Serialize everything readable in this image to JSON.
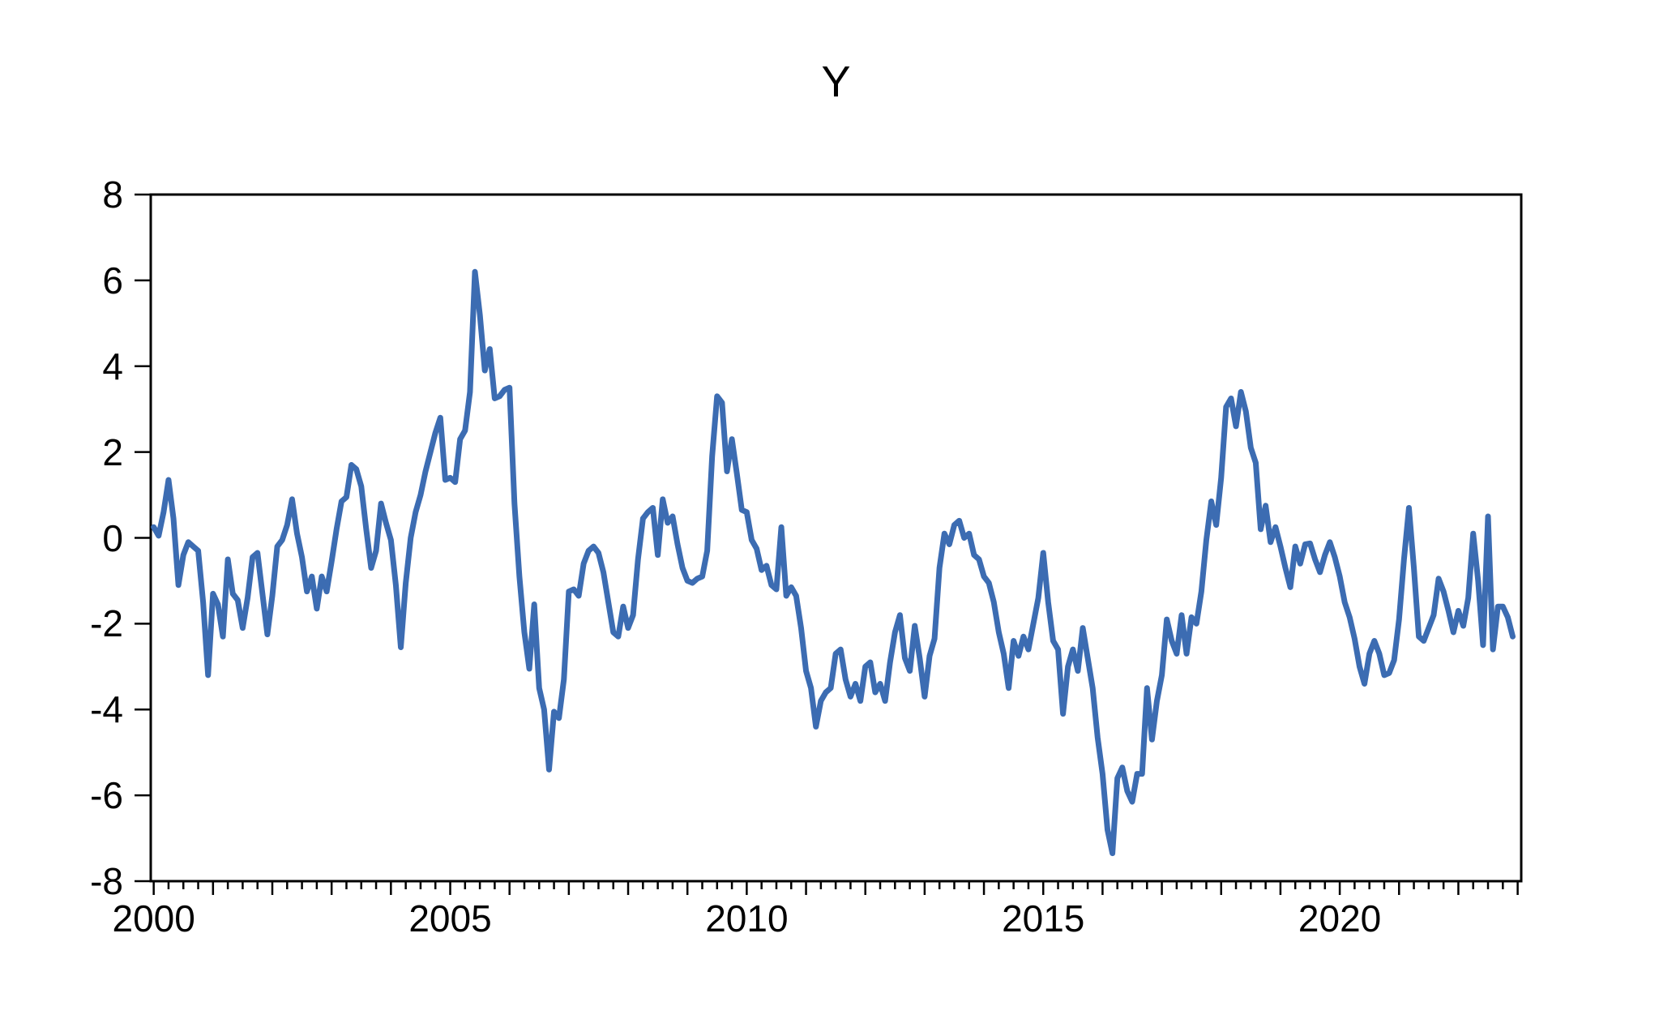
{
  "page": {
    "background": "#ffffff"
  },
  "chart_data": {
    "type": "line",
    "title": "Y",
    "xlabel": "",
    "ylabel": "",
    "grid": false,
    "legend": "none",
    "axis_color": "#000000",
    "ylim": [
      -8,
      8
    ],
    "y_tick_step": 2,
    "y_tick_labels": [
      "8",
      "6",
      "4",
      "2",
      "0",
      "-2",
      "-4",
      "-6",
      "-8"
    ],
    "x_axis_years": [
      2000,
      2023
    ],
    "x_minor_tick_interval_years": 0.25,
    "x_tick_labels": [
      {
        "label": "2000",
        "year": 2000
      },
      {
        "label": "2005",
        "year": 2005
      },
      {
        "label": "2010",
        "year": 2010
      },
      {
        "label": "2015",
        "year": 2015
      },
      {
        "label": "2020",
        "year": 2020
      }
    ],
    "series": [
      {
        "name": "Y",
        "color": "#3c6cb2",
        "frequency": "monthly",
        "start_period": "2000-01",
        "end_period": "2022-12",
        "values": [
          0.25,
          0.05,
          0.6,
          1.35,
          0.45,
          -1.1,
          -0.4,
          -0.1,
          -0.2,
          -0.3,
          -1.5,
          -3.2,
          -1.3,
          -1.55,
          -2.3,
          -0.5,
          -1.3,
          -1.45,
          -2.1,
          -1.4,
          -0.45,
          -0.35,
          -1.3,
          -2.25,
          -1.35,
          -0.2,
          -0.05,
          0.3,
          0.9,
          0.1,
          -0.45,
          -1.25,
          -0.9,
          -1.65,
          -0.9,
          -1.25,
          -0.55,
          0.2,
          0.85,
          0.95,
          1.7,
          1.6,
          1.2,
          0.2,
          -0.7,
          -0.3,
          0.8,
          0.35,
          -0.05,
          -1.1,
          -2.55,
          -1.05,
          0.0,
          0.6,
          1.0,
          1.55,
          2.0,
          2.45,
          2.8,
          1.35,
          1.4,
          1.3,
          2.3,
          2.5,
          3.4,
          6.2,
          5.2,
          3.9,
          4.4,
          3.25,
          3.3,
          3.45,
          3.5,
          0.8,
          -0.9,
          -2.2,
          -3.05,
          -1.55,
          -3.5,
          -4.0,
          -5.4,
          -4.05,
          -4.2,
          -3.3,
          -1.25,
          -1.2,
          -1.35,
          -0.6,
          -0.3,
          -0.2,
          -0.35,
          -0.8,
          -1.5,
          -2.2,
          -2.3,
          -1.6,
          -2.1,
          -1.8,
          -0.5,
          0.45,
          0.6,
          0.7,
          -0.4,
          0.9,
          0.35,
          0.5,
          -0.15,
          -0.7,
          -1.0,
          -1.05,
          -0.95,
          -0.9,
          -0.3,
          1.9,
          3.3,
          3.15,
          1.55,
          2.3,
          1.5,
          0.65,
          0.6,
          -0.05,
          -0.25,
          -0.75,
          -0.65,
          -1.1,
          -1.2,
          0.25,
          -1.35,
          -1.15,
          -1.35,
          -2.1,
          -3.1,
          -3.5,
          -4.4,
          -3.8,
          -3.6,
          -3.5,
          -2.7,
          -2.6,
          -3.3,
          -3.7,
          -3.4,
          -3.8,
          -3.0,
          -2.9,
          -3.6,
          -3.4,
          -3.8,
          -2.9,
          -2.2,
          -1.8,
          -2.8,
          -3.1,
          -2.05,
          -2.8,
          -3.7,
          -2.75,
          -2.35,
          -0.7,
          0.1,
          -0.15,
          0.3,
          0.4,
          0.0,
          0.1,
          -0.4,
          -0.5,
          -0.9,
          -1.05,
          -1.5,
          -2.2,
          -2.7,
          -3.5,
          -2.4,
          -2.75,
          -2.3,
          -2.6,
          -2.0,
          -1.4,
          -0.35,
          -1.5,
          -2.4,
          -2.6,
          -4.1,
          -3.0,
          -2.6,
          -3.1,
          -2.1,
          -2.8,
          -3.5,
          -4.65,
          -5.5,
          -6.8,
          -7.35,
          -5.6,
          -5.35,
          -5.9,
          -6.15,
          -5.5,
          -5.5,
          -3.5,
          -4.7,
          -3.8,
          -3.2,
          -1.9,
          -2.4,
          -2.7,
          -1.8,
          -2.7,
          -1.85,
          -2.0,
          -1.25,
          -0.05,
          0.85,
          0.3,
          1.4,
          3.05,
          3.25,
          2.6,
          3.4,
          2.95,
          2.1,
          1.75,
          0.2,
          0.75,
          -0.1,
          0.25,
          -0.2,
          -0.7,
          -1.15,
          -0.2,
          -0.6,
          -0.15,
          -0.13,
          -0.5,
          -0.8,
          -0.4,
          -0.1,
          -0.45,
          -0.9,
          -1.5,
          -1.85,
          -2.35,
          -3.0,
          -3.4,
          -2.7,
          -2.4,
          -2.7,
          -3.2,
          -3.15,
          -2.85,
          -1.9,
          -0.5,
          0.7,
          -0.7,
          -2.3,
          -2.4,
          -2.1,
          -1.8,
          -0.95,
          -1.25,
          -1.7,
          -2.2,
          -1.7,
          -2.05,
          -1.4,
          0.1,
          -1.0,
          -2.5,
          0.5,
          -2.6,
          -1.6,
          -1.6,
          -1.85,
          -2.3
        ]
      }
    ]
  }
}
